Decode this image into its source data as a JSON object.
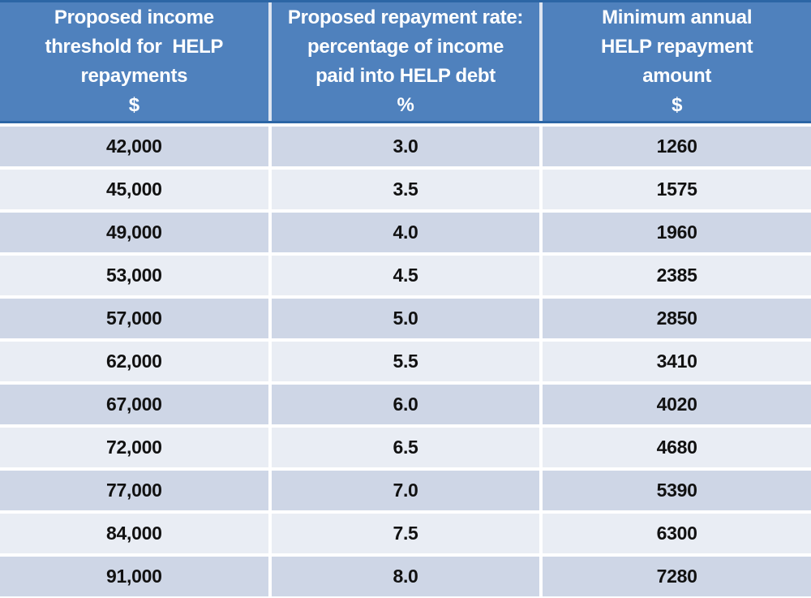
{
  "table": {
    "columns": [
      {
        "title_lines": [
          "Proposed income",
          "threshold for  HELP",
          "repayments"
        ],
        "unit": "$"
      },
      {
        "title_lines": [
          "Proposed repayment rate:",
          "percentage of income",
          "paid into HELP debt"
        ],
        "unit": "%"
      },
      {
        "title_lines": [
          "Minimum annual",
          "HELP repayment",
          "amount"
        ],
        "unit": "$"
      }
    ],
    "rows": [
      [
        "42,000",
        "3.0",
        "1260"
      ],
      [
        "45,000",
        "3.5",
        "1575"
      ],
      [
        "49,000",
        "4.0",
        "1960"
      ],
      [
        "53,000",
        "4.5",
        "2385"
      ],
      [
        "57,000",
        "5.0",
        "2850"
      ],
      [
        "62,000",
        "5.5",
        "3410"
      ],
      [
        "67,000",
        "6.0",
        "4020"
      ],
      [
        "72,000",
        "6.5",
        "4680"
      ],
      [
        "77,000",
        "7.0",
        "5390"
      ],
      [
        "84,000",
        "7.5",
        "6300"
      ],
      [
        "91,000",
        "8.0",
        "7280"
      ]
    ]
  },
  "colors": {
    "header_fill": "#4f81bd",
    "header_border": "#2c66a5",
    "band_dark": "#ced6e6",
    "band_light": "#e9edf4",
    "header_text": "#ffffff",
    "data_text": "#111111"
  },
  "chart_data": {
    "type": "table",
    "columns": [
      "Proposed income threshold for HELP repayments ($)",
      "Proposed repayment rate: percentage of income paid into HELP debt (%)",
      "Minimum annual HELP repayment amount ($)"
    ],
    "rows": [
      [
        42000,
        3.0,
        1260
      ],
      [
        45000,
        3.5,
        1575
      ],
      [
        49000,
        4.0,
        1960
      ],
      [
        53000,
        4.5,
        2385
      ],
      [
        57000,
        5.0,
        2850
      ],
      [
        62000,
        5.5,
        3410
      ],
      [
        67000,
        6.0,
        4020
      ],
      [
        72000,
        6.5,
        4680
      ],
      [
        77000,
        7.0,
        5390
      ],
      [
        84000,
        7.5,
        6300
      ],
      [
        91000,
        8.0,
        7280
      ]
    ]
  }
}
